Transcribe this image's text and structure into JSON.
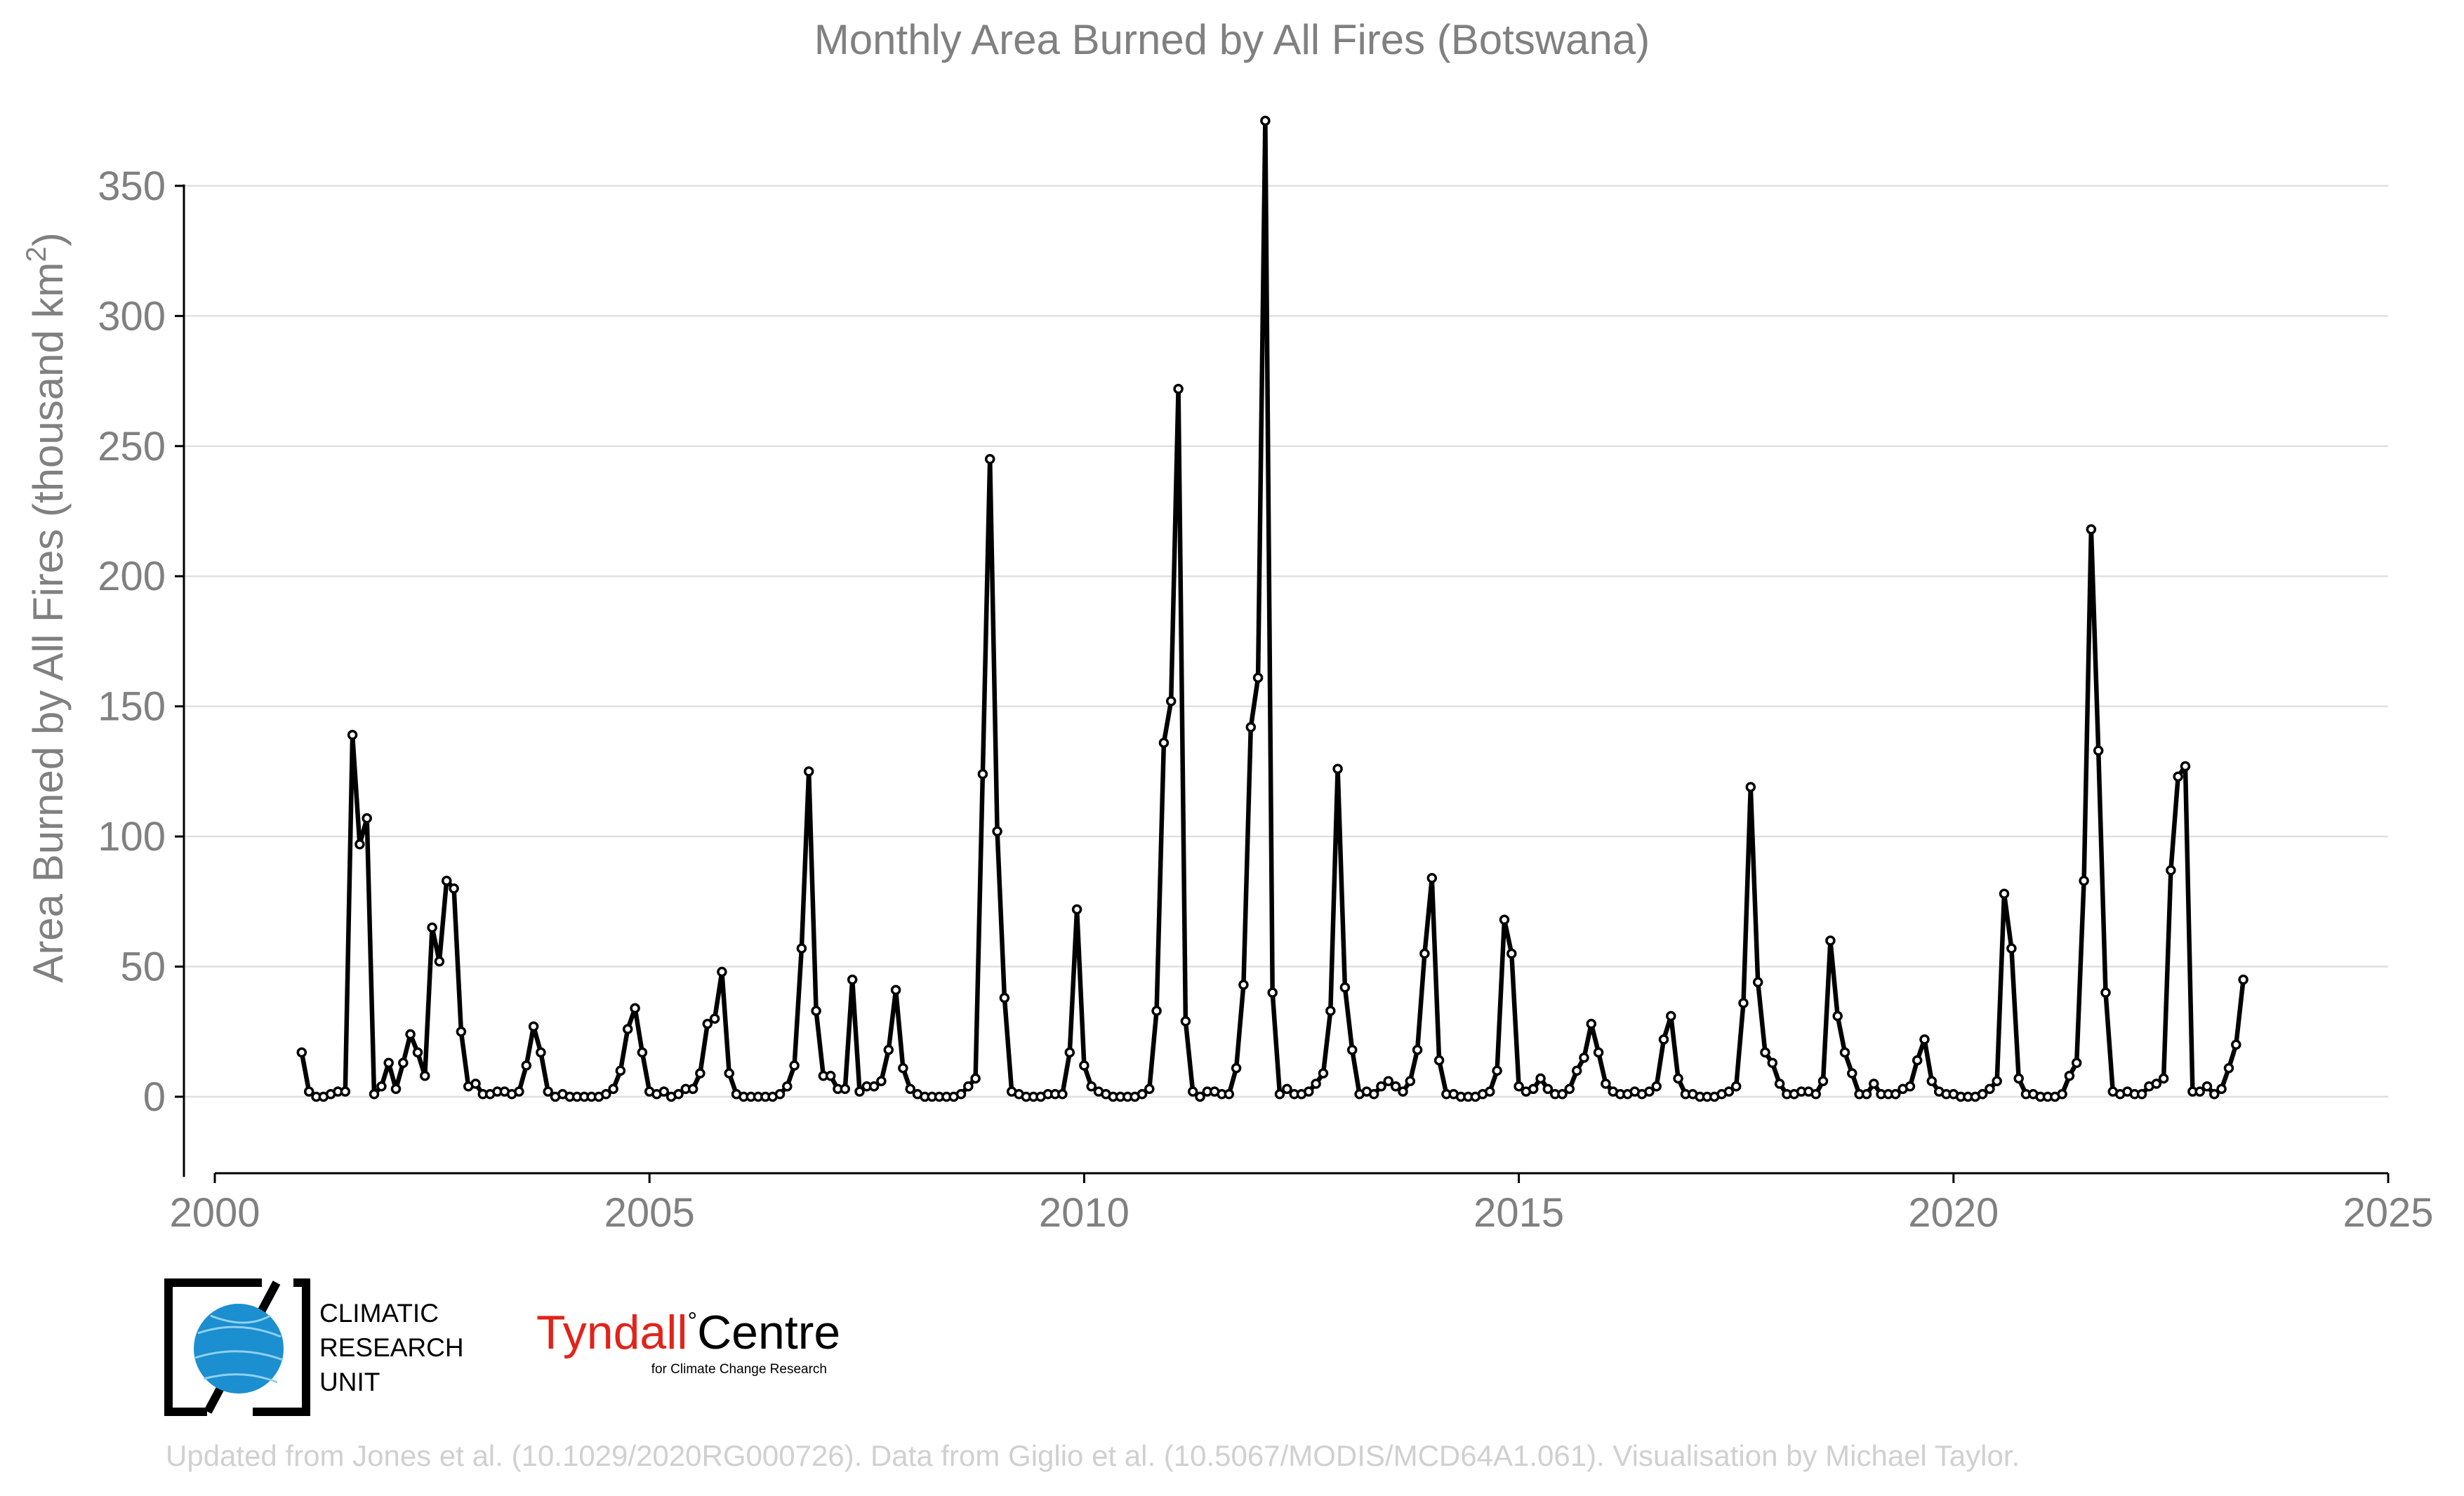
{
  "chart_data": {
    "type": "line",
    "title": "Monthly Area Burned by All Fires (Botswana)",
    "ylabel_main": "Area Burned by All Fires (thousand km",
    "ylabel_sup": "2",
    "ylabel_close": ")",
    "xlim": [
      2000,
      2025
    ],
    "ylim": [
      -30,
      380
    ],
    "yticks": [
      0,
      50,
      100,
      150,
      200,
      250,
      300,
      350
    ],
    "xticks": [
      2000,
      2005,
      2010,
      2015,
      2020,
      2025
    ],
    "grid": "horizontal",
    "series": [
      {
        "start_year": 2001,
        "start_month": 1,
        "values": [
          17,
          2,
          0,
          0,
          1,
          2,
          2,
          139,
          97,
          107,
          1,
          4,
          13,
          3,
          13,
          24,
          17,
          8,
          65,
          52,
          83,
          80,
          25,
          4,
          5,
          1,
          1,
          2,
          2,
          1,
          2,
          12,
          27,
          17,
          2,
          0,
          1,
          0,
          0,
          0,
          0,
          0,
          1,
          3,
          10,
          26,
          34,
          17,
          2,
          1,
          2,
          0,
          1,
          3,
          3,
          9,
          28,
          30,
          48,
          9,
          1,
          0,
          0,
          0,
          0,
          0,
          1,
          4,
          12,
          57,
          125,
          33,
          8,
          8,
          3,
          3,
          45,
          2,
          4,
          4,
          6,
          18,
          41,
          11,
          3,
          1,
          0,
          0,
          0,
          0,
          0,
          1,
          4,
          7,
          124,
          245,
          102,
          38,
          2,
          1,
          0,
          0,
          0,
          1,
          1,
          1,
          17,
          72,
          12,
          4,
          2,
          1,
          0,
          0,
          0,
          0,
          1,
          3,
          33,
          136,
          152,
          272,
          29,
          2,
          0,
          2,
          2,
          1,
          1,
          11,
          43,
          142,
          161,
          375,
          40,
          1,
          3,
          1,
          1,
          2,
          5,
          9,
          33,
          126,
          42,
          18,
          1,
          2,
          1,
          4,
          6,
          4,
          2,
          6,
          18,
          55,
          84,
          14,
          1,
          1,
          0,
          0,
          0,
          1,
          2,
          10,
          68,
          55,
          4,
          2,
          3,
          7,
          3,
          1,
          1,
          3,
          10,
          15,
          28,
          17,
          5,
          2,
          1,
          1,
          2,
          1,
          2,
          4,
          22,
          31,
          7,
          1,
          1,
          0,
          0,
          0,
          1,
          2,
          4,
          36,
          119,
          44,
          17,
          13,
          5,
          1,
          1,
          2,
          2,
          1,
          6,
          60,
          31,
          17,
          9,
          1,
          1,
          5,
          1,
          1,
          1,
          3,
          4,
          14,
          22,
          6,
          2,
          1,
          1,
          0,
          0,
          0,
          1,
          3,
          6,
          78,
          57,
          7,
          1,
          1,
          0,
          0,
          0,
          1,
          8,
          13,
          83,
          218,
          133,
          40,
          2,
          1,
          2,
          1,
          1,
          4,
          5,
          7,
          87,
          123,
          127,
          2,
          2,
          4,
          1,
          3,
          11,
          20,
          45
        ]
      }
    ]
  },
  "logos": {
    "cru_line1": "CLIMATIC",
    "cru_line2": "RESEARCH",
    "cru_line3": "UNIT",
    "tyndall_red": "Tyndall",
    "tyndall_degree": "°",
    "tyndall_black": "Centre",
    "tyndall_sub": "for Climate Change Research"
  },
  "colors": {
    "line": "#000000",
    "axis_text": "#808080",
    "grid": "#e0e0e0",
    "credit": "#d0d0d0",
    "cru_blue": "#1b8fcf",
    "tyndall_red": "#e2231a"
  },
  "credit": "Updated from Jones et al. (10.1029/2020RG000726). Data from Giglio et al. (10.5067/MODIS/MCD64A1.061). Visualisation by Michael Taylor."
}
